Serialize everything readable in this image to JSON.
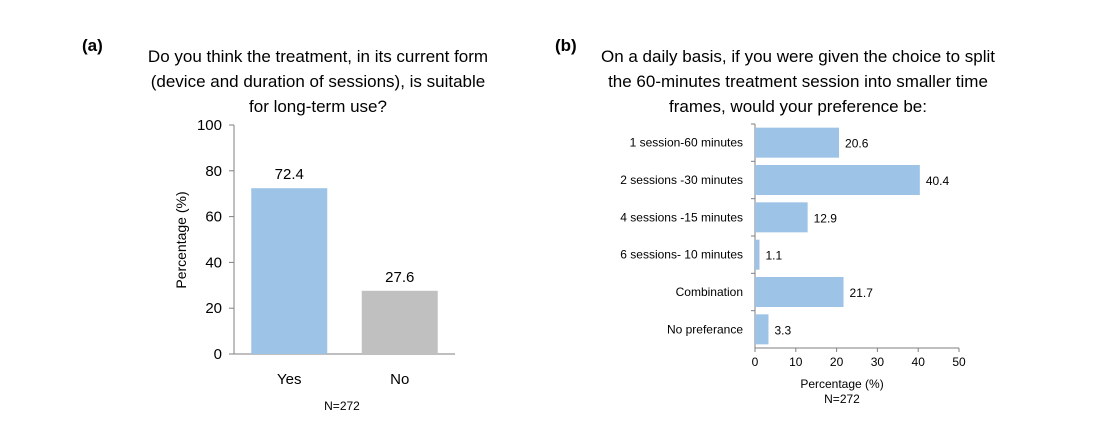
{
  "chart_data": [
    {
      "type": "bar",
      "panel_label": "(a)",
      "title_lines": [
        "Do you think the treatment, in its current form",
        "(device and duration of sessions), is suitable",
        "for long-term use?"
      ],
      "categories": [
        "Yes",
        "No"
      ],
      "values": [
        72.4,
        27.6
      ],
      "value_labels": [
        "72.4",
        "27.6"
      ],
      "colors": [
        "#9dc3e6",
        "#c0c0c0"
      ],
      "ylabel": "Percentage (%)",
      "ylim": [
        0,
        100
      ],
      "yticks": [
        "0",
        "20",
        "40",
        "60",
        "80",
        "100"
      ],
      "note": "N=272"
    },
    {
      "type": "bar",
      "orientation": "horizontal",
      "panel_label": "(b)",
      "title_lines": [
        "On a daily basis, if you were given the choice to split",
        "the 60-minutes treatment session into smaller time",
        "frames, would your preference be:"
      ],
      "categories": [
        "1 session-60 minutes",
        "2 sessions -30 minutes",
        "4 sessions -15 minutes",
        "6 sessions- 10 minutes",
        "Combination",
        "No preferance"
      ],
      "values": [
        20.6,
        40.4,
        12.9,
        1.1,
        21.7,
        3.3
      ],
      "value_labels": [
        "20.6",
        "40.4",
        "12.9",
        "1.1",
        "21.7",
        "3.3"
      ],
      "color": "#9dc3e6",
      "xlabel": "Percentage (%)",
      "xlim": [
        0,
        50
      ],
      "xticks": [
        "0",
        "10",
        "20",
        "30",
        "40",
        "50"
      ],
      "note": "N=272"
    }
  ]
}
